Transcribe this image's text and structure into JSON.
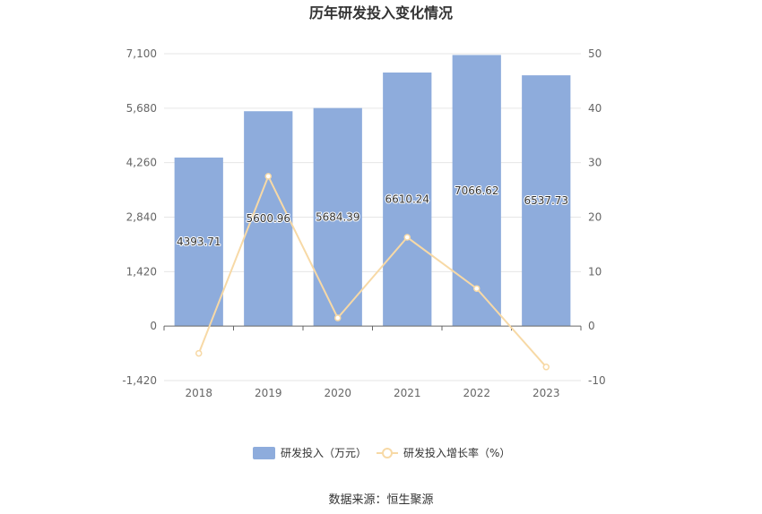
{
  "chart_data": {
    "type": "bar",
    "title": "历年研发投入变化情况",
    "categories": [
      "2018",
      "2019",
      "2020",
      "2021",
      "2022",
      "2023"
    ],
    "series": [
      {
        "name": "研发投入（万元）",
        "type": "bar",
        "axis": "left",
        "color": "#8eacdc",
        "values": [
          4393.71,
          5600.96,
          5684.39,
          6610.24,
          7066.62,
          6537.73
        ],
        "labels": [
          "4393.71",
          "5600.96",
          "5684.39",
          "6610.24",
          "7066.62",
          "6537.73"
        ]
      },
      {
        "name": "研发投入增长率（%）",
        "type": "line",
        "axis": "right",
        "color": "#f7d9a6",
        "values": [
          -5.0,
          27.5,
          1.5,
          16.3,
          6.9,
          -7.5
        ]
      }
    ],
    "yaxis_left": {
      "ylim": [
        -1420,
        7100
      ],
      "ticks": [
        -1420,
        0,
        1420,
        2840,
        4260,
        5680,
        7100
      ],
      "tick_labels": [
        "-1,420",
        "0",
        "1,420",
        "2,840",
        "4,260",
        "5,680",
        "7,100"
      ]
    },
    "yaxis_right": {
      "ylim": [
        -10,
        50
      ],
      "ticks": [
        -10,
        0,
        10,
        20,
        30,
        40,
        50
      ],
      "tick_labels": [
        "-10",
        "0",
        "10",
        "20",
        "30",
        "40",
        "50"
      ]
    },
    "grid": true,
    "legend": "bottom-center",
    "source": "数据来源：恒生聚源"
  }
}
